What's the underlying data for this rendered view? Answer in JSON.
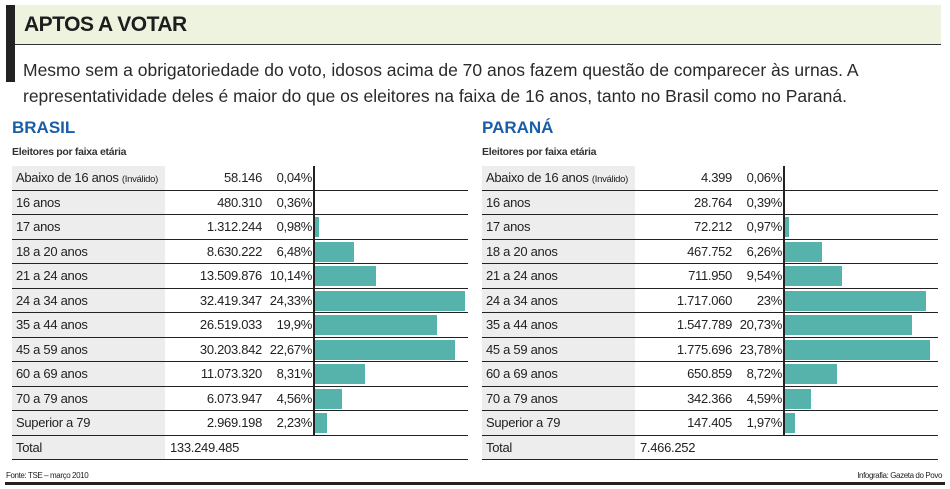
{
  "title": "APTOS A VOTAR",
  "description": "Mesmo sem a obrigatoriedade do voto, idosos acima de 70 anos fazem questão de comparecer às urnas. A representatividade deles é maior do que os eleitores na faixa de 16 anos, tanto no Brasil como no Paraná.",
  "footer": {
    "source": "Fonte: TSE – março 2010",
    "credit": "Infografia: Gazeta do Povo"
  },
  "colors": {
    "bar": "#55b3ac",
    "title": "#1a5ea8",
    "header_bg": "#eef3df"
  },
  "chart_data": [
    {
      "type": "bar",
      "orientation": "horizontal",
      "title": "BRASIL",
      "subtitle": "Eleitores por faixa etária",
      "categories": [
        "Abaixo de 16 anos",
        "16 anos",
        "17 anos",
        "18 a 20 anos",
        "21 a 24 anos",
        "24 a 34 anos",
        "35 a 44 anos",
        "45 a 59 anos",
        "60 a 69 anos",
        "70 a 79 anos",
        "Superior a 79"
      ],
      "category_notes": [
        "(Inválido)",
        "",
        "",
        "",
        "",
        "",
        "",
        "",
        "",
        "",
        ""
      ],
      "counts": [
        "58.146",
        "480.310",
        "1.312.244",
        "8.630.222",
        "13.509.876",
        "32.419.347",
        "26.519.033",
        "30.203.842",
        "11.073.320",
        "6.073.947",
        "2.969.198"
      ],
      "percent_labels": [
        "0,04%",
        "0,36%",
        "0,98%",
        "6,48%",
        "10,14%",
        "24,33%",
        "19,9%",
        "22,67%",
        "8,31%",
        "4,56%",
        "2,23%"
      ],
      "values": [
        0.04,
        0.36,
        0.98,
        6.48,
        10.14,
        24.33,
        19.9,
        22.67,
        8.31,
        4.56,
        2.23
      ],
      "total_label": "Total",
      "total": "133.249.485"
    },
    {
      "type": "bar",
      "orientation": "horizontal",
      "title": "PARANÁ",
      "subtitle": "Eleitores por faixa etária",
      "categories": [
        "Abaixo de 16 anos",
        "16 anos",
        "17 anos",
        "18 a 20 anos",
        "21 a 24 anos",
        "24 a 34 anos",
        "35 a 44 anos",
        "45 a 59 anos",
        "60 a 69 anos",
        "70 a 79 anos",
        "Superior a 79"
      ],
      "category_notes": [
        "(Inválido)",
        "",
        "",
        "",
        "",
        "",
        "",
        "",
        "",
        "",
        ""
      ],
      "counts": [
        "4.399",
        "28.764",
        "72.212",
        "467.752",
        "711.950",
        "1.717.060",
        "1.547.789",
        "1.775.696",
        "650.859",
        "342.366",
        "147.405"
      ],
      "percent_labels": [
        "0,06%",
        "0,39%",
        "0,97%",
        "6,26%",
        "9,54%",
        "23%",
        "20,73%",
        "23,78%",
        "8,72%",
        "4,59%",
        "1,97%"
      ],
      "values": [
        0.06,
        0.39,
        0.97,
        6.26,
        9.54,
        23,
        20.73,
        23.78,
        8.72,
        4.59,
        1.97
      ],
      "total_label": "Total",
      "total": "7.466.252"
    }
  ]
}
